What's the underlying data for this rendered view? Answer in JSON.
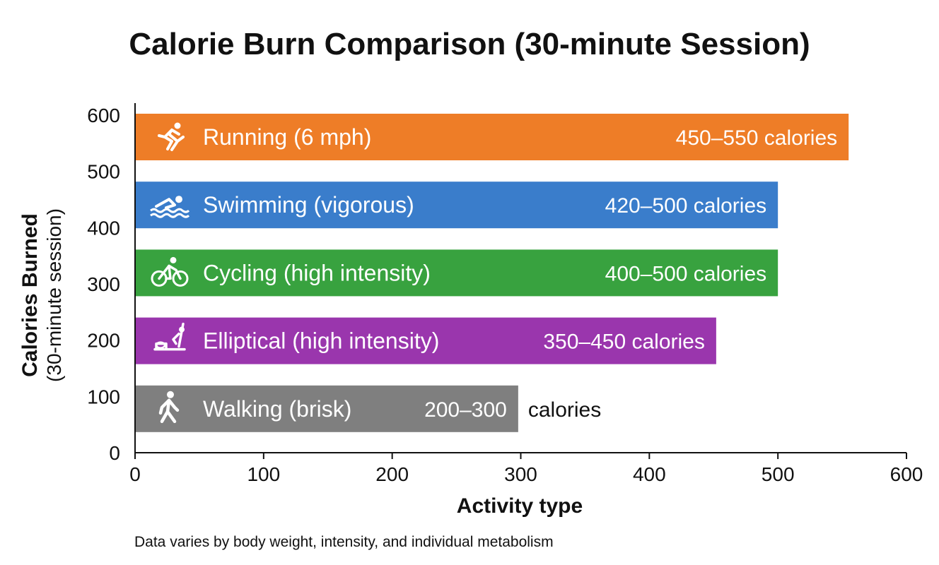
{
  "chart_data": {
    "type": "bar",
    "orientation": "horizontal",
    "title": "Calorie Burn Comparison (30-minute Session)",
    "ylabel_line1": "Calories Burned",
    "ylabel_line2": "(30-minute session)",
    "xlabel": "Activity type",
    "footnote": "Data varies by body weight, intensity, and individual metabolism",
    "xlim": [
      0,
      600
    ],
    "x_ticks": [
      "0",
      "100",
      "200",
      "300",
      "400",
      "500",
      "600"
    ],
    "y_ticks": [
      "0",
      "100",
      "200",
      "300",
      "400",
      "500",
      "600"
    ],
    "grid": false,
    "categories": [
      {
        "label": "Running (6 mph)",
        "range_label": "450–550 calories",
        "suffix": "",
        "value": 555,
        "color": "#ee7d27",
        "icon": "running-icon"
      },
      {
        "label": "Swimming (vigorous)",
        "range_label": "420–500 calories",
        "suffix": "",
        "value": 500,
        "color": "#3a7dcb",
        "icon": "swimming-icon"
      },
      {
        "label": "Cycling (high intensity)",
        "range_label": "400–500 calories",
        "suffix": "",
        "value": 500,
        "color": "#38a23f",
        "icon": "cycling-icon"
      },
      {
        "label": "Elliptical (high intensity)",
        "range_label": "350–450 calories",
        "suffix": "",
        "value": 452,
        "color": "#9a36ad",
        "icon": "elliptical-icon"
      },
      {
        "label": "Walking (brisk)",
        "range_label": "200–300",
        "suffix": "calories",
        "value": 298,
        "color": "#7f7f7f",
        "icon": "walking-icon"
      }
    ]
  }
}
